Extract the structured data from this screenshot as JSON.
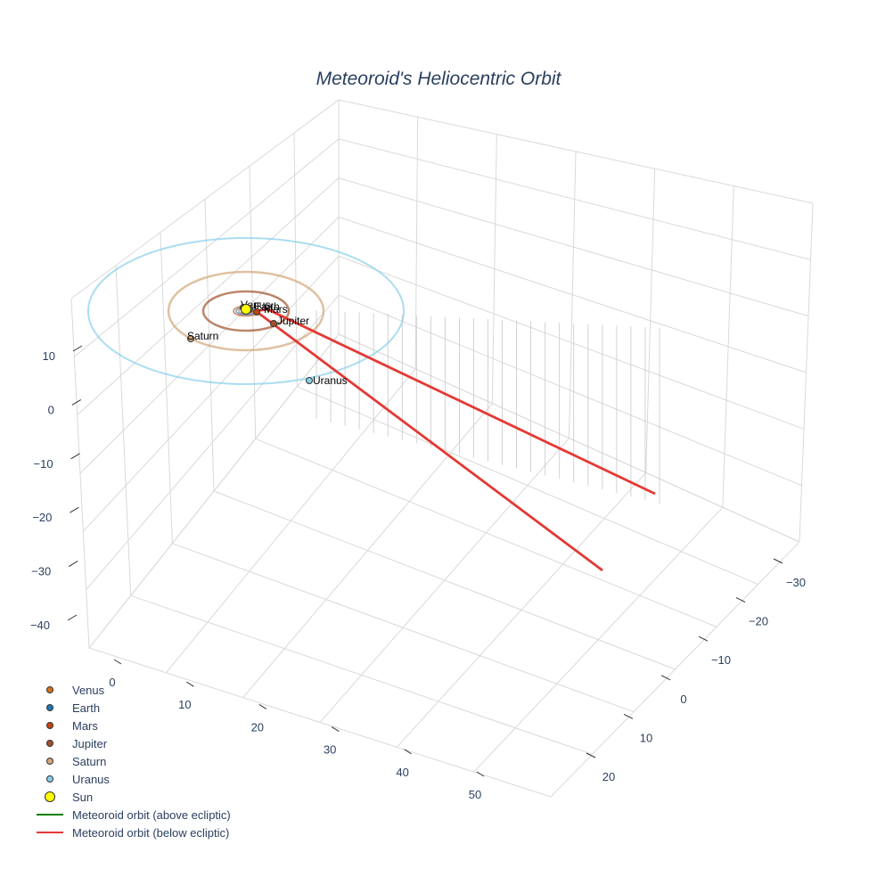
{
  "chart_data": {
    "type": "scatter3d",
    "title": "Meteoroid's Heliocentric Orbit",
    "axes": {
      "x_ticks": [
        "0",
        "10",
        "20",
        "30",
        "40",
        "50"
      ],
      "y_ticks": [
        "−30",
        "−20",
        "−10",
        "0",
        "10",
        "20"
      ],
      "z_ticks": [
        "10",
        "0",
        "−10",
        "−20",
        "−30",
        "−40"
      ],
      "grid": true
    },
    "legend": {
      "placement": "bottom-left",
      "items": [
        {
          "name": "Venus",
          "kind": "marker",
          "color": "#d2731e"
        },
        {
          "name": "Earth",
          "kind": "marker",
          "color": "#1f77b4"
        },
        {
          "name": "Mars",
          "kind": "marker",
          "color": "#c1440e"
        },
        {
          "name": "Jupiter",
          "kind": "marker",
          "color": "#a0522d"
        },
        {
          "name": "Saturn",
          "kind": "marker",
          "color": "#d2a679"
        },
        {
          "name": "Uranus",
          "kind": "marker",
          "color": "#87ceeb"
        },
        {
          "name": "Sun",
          "kind": "sun",
          "color": "#ffff00"
        },
        {
          "name": "Meteoroid orbit (above ecliptic)",
          "kind": "line",
          "color": "#008000"
        },
        {
          "name": "Meteoroid orbit (below ecliptic)",
          "kind": "line",
          "color": "#e53935"
        }
      ]
    },
    "planets": [
      {
        "name": "Venus",
        "color": "#d2731e",
        "orbit_radius_au": 0.72
      },
      {
        "name": "Earth",
        "color": "#1f77b4",
        "orbit_radius_au": 1.0
      },
      {
        "name": "Mars",
        "color": "#c1440e",
        "orbit_radius_au": 1.52
      },
      {
        "name": "Jupiter",
        "color": "#a0522d",
        "orbit_radius_au": 5.2
      },
      {
        "name": "Saturn",
        "color": "#d2a679",
        "orbit_radius_au": 9.5
      },
      {
        "name": "Uranus",
        "color": "#87ceeb",
        "orbit_radius_au": 19.2
      }
    ],
    "sun": {
      "name": "Sun",
      "color": "#ffff00"
    },
    "meteoroid_orbit": {
      "above_color": "#008000",
      "below_color": "#e53935"
    }
  }
}
